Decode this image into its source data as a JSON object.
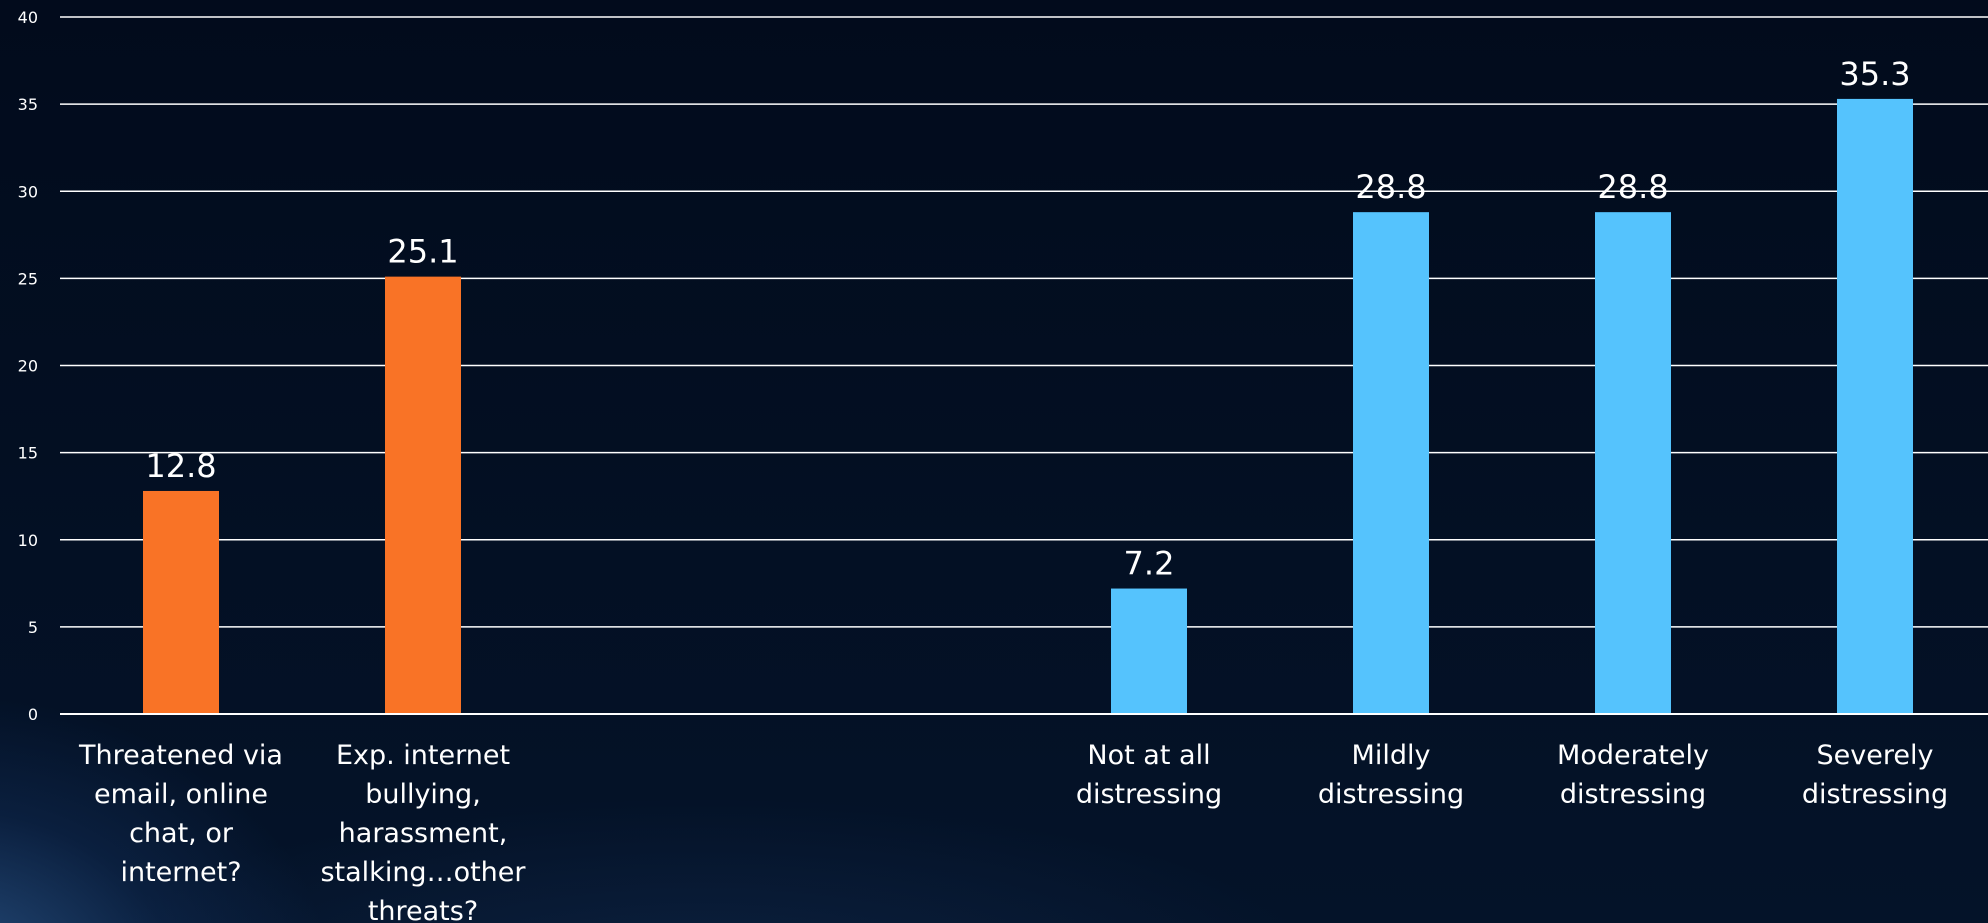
{
  "chart_data": {
    "type": "bar",
    "categories": [
      "Threatened  via email, online chat, or internet?",
      "Exp. internet bullying, harassment, stalking…other threats?",
      "",
      "",
      "Not at all distressing",
      "Mildly distressing",
      "Moderately distressing",
      "Severely distressing"
    ],
    "values": [
      12.8,
      25.1,
      null,
      null,
      7.2,
      28.8,
      28.8,
      35.3
    ],
    "data_labels": [
      "12.8",
      "25.1",
      "",
      "",
      "7.2",
      "28.8",
      "28.8",
      "35.3"
    ],
    "bar_colors": [
      "#f97326",
      "#f97326",
      null,
      null,
      "#55c3fd",
      "#55c3fd",
      "#55c3fd",
      "#55c3fd"
    ],
    "title": "",
    "xlabel": "",
    "ylabel": "",
    "ylim": [
      0,
      40
    ],
    "yticks": [
      0,
      5,
      10,
      15,
      20,
      25,
      30,
      35,
      40
    ],
    "grid": true,
    "legend": "none",
    "colors": {
      "gridline": "#ffffff",
      "text": "#ffffff",
      "background": "#030d1f"
    }
  }
}
